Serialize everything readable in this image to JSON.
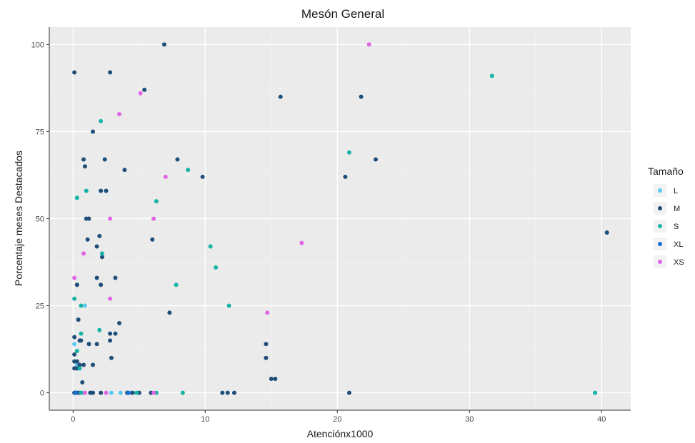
{
  "chart_data": {
    "type": "scatter",
    "title": "Mesón General",
    "xlabel": "Atenciónx1000",
    "ylabel": "Porcentaje meses Destacados",
    "xlim": [
      -1.8,
      42.2
    ],
    "ylim": [
      -5,
      105
    ],
    "xticks": [
      0,
      10,
      20,
      30,
      40
    ],
    "yticks": [
      0,
      25,
      50,
      75,
      100
    ],
    "grid": true,
    "legend": {
      "title": "Tamaño",
      "placement": "right",
      "entries": [
        {
          "name": "L",
          "color": "#5bc8f0"
        },
        {
          "name": "M",
          "color": "#1f4e79"
        },
        {
          "name": "S",
          "color": "#17b3a6"
        },
        {
          "name": "XL",
          "color": "#1a6fd4"
        },
        {
          "name": "XS",
          "color": "#e066e6"
        }
      ]
    },
    "series": [
      {
        "name": "L",
        "points": [
          [
            0.1,
            14
          ],
          [
            0.3,
            8
          ],
          [
            0.9,
            25
          ],
          [
            0.2,
            0
          ],
          [
            2.9,
            0
          ],
          [
            3.6,
            0
          ],
          [
            4.4,
            0
          ],
          [
            0.8,
            0
          ]
        ]
      },
      {
        "name": "M",
        "points": [
          [
            0.1,
            92
          ],
          [
            2.8,
            92
          ],
          [
            6.9,
            100
          ],
          [
            5.4,
            87
          ],
          [
            15.7,
            85
          ],
          [
            21.8,
            85
          ],
          [
            1.5,
            75
          ],
          [
            0.8,
            67
          ],
          [
            2.4,
            67
          ],
          [
            7.9,
            67
          ],
          [
            22.9,
            67
          ],
          [
            0.9,
            65
          ],
          [
            3.9,
            64
          ],
          [
            9.8,
            62
          ],
          [
            20.6,
            62
          ],
          [
            2.1,
            58
          ],
          [
            2.5,
            58
          ],
          [
            1.0,
            50
          ],
          [
            1.2,
            50
          ],
          [
            40.4,
            46
          ],
          [
            2.0,
            45
          ],
          [
            1.1,
            44
          ],
          [
            6.0,
            44
          ],
          [
            1.8,
            42
          ],
          [
            2.2,
            39
          ],
          [
            1.8,
            33
          ],
          [
            3.2,
            33
          ],
          [
            0.3,
            31
          ],
          [
            2.1,
            31
          ],
          [
            7.3,
            23
          ],
          [
            0.4,
            21
          ],
          [
            3.5,
            20
          ],
          [
            2.8,
            17
          ],
          [
            3.2,
            17
          ],
          [
            0.1,
            16
          ],
          [
            0.5,
            15
          ],
          [
            0.6,
            15
          ],
          [
            2.8,
            15
          ],
          [
            14.6,
            14
          ],
          [
            1.2,
            14
          ],
          [
            1.8,
            14
          ],
          [
            0.1,
            11
          ],
          [
            0.1,
            9
          ],
          [
            0.3,
            9
          ],
          [
            0.5,
            8
          ],
          [
            0.8,
            8
          ],
          [
            1.5,
            8
          ],
          [
            0.1,
            7
          ],
          [
            0.3,
            7
          ],
          [
            2.9,
            10
          ],
          [
            14.6,
            10
          ],
          [
            0.7,
            3
          ],
          [
            15.0,
            4
          ],
          [
            15.3,
            4
          ],
          [
            0.1,
            0
          ],
          [
            0.3,
            0
          ],
          [
            0.5,
            0
          ],
          [
            1.3,
            0
          ],
          [
            1.5,
            0
          ],
          [
            2.1,
            0
          ],
          [
            4.1,
            0
          ],
          [
            4.5,
            0
          ],
          [
            5.0,
            0
          ],
          [
            5.9,
            0
          ],
          [
            11.3,
            0
          ],
          [
            11.7,
            0
          ],
          [
            12.2,
            0
          ],
          [
            20.9,
            0
          ]
        ]
      },
      {
        "name": "S",
        "points": [
          [
            31.7,
            91
          ],
          [
            2.1,
            78
          ],
          [
            20.9,
            69
          ],
          [
            8.7,
            64
          ],
          [
            1.0,
            58
          ],
          [
            0.3,
            56
          ],
          [
            6.3,
            55
          ],
          [
            10.4,
            42
          ],
          [
            2.2,
            40
          ],
          [
            10.8,
            36
          ],
          [
            7.8,
            31
          ],
          [
            0.1,
            27
          ],
          [
            0.6,
            25
          ],
          [
            11.8,
            25
          ],
          [
            2.0,
            18
          ],
          [
            0.6,
            17
          ],
          [
            0.3,
            12
          ],
          [
            0.5,
            7
          ],
          [
            0.6,
            0
          ],
          [
            4.8,
            0
          ],
          [
            6.3,
            0
          ],
          [
            8.3,
            0
          ],
          [
            39.5,
            0
          ]
        ]
      },
      {
        "name": "XL",
        "points": [
          [
            0.2,
            0
          ],
          [
            4.2,
            0
          ]
        ]
      },
      {
        "name": "XS",
        "points": [
          [
            22.4,
            100
          ],
          [
            5.1,
            86
          ],
          [
            3.5,
            80
          ],
          [
            7.0,
            62
          ],
          [
            2.8,
            50
          ],
          [
            6.1,
            50
          ],
          [
            17.3,
            43
          ],
          [
            0.8,
            40
          ],
          [
            0.1,
            33
          ],
          [
            2.8,
            27
          ],
          [
            14.7,
            23
          ],
          [
            0.9,
            0
          ],
          [
            2.5,
            0
          ],
          [
            6.1,
            0
          ]
        ]
      }
    ]
  }
}
